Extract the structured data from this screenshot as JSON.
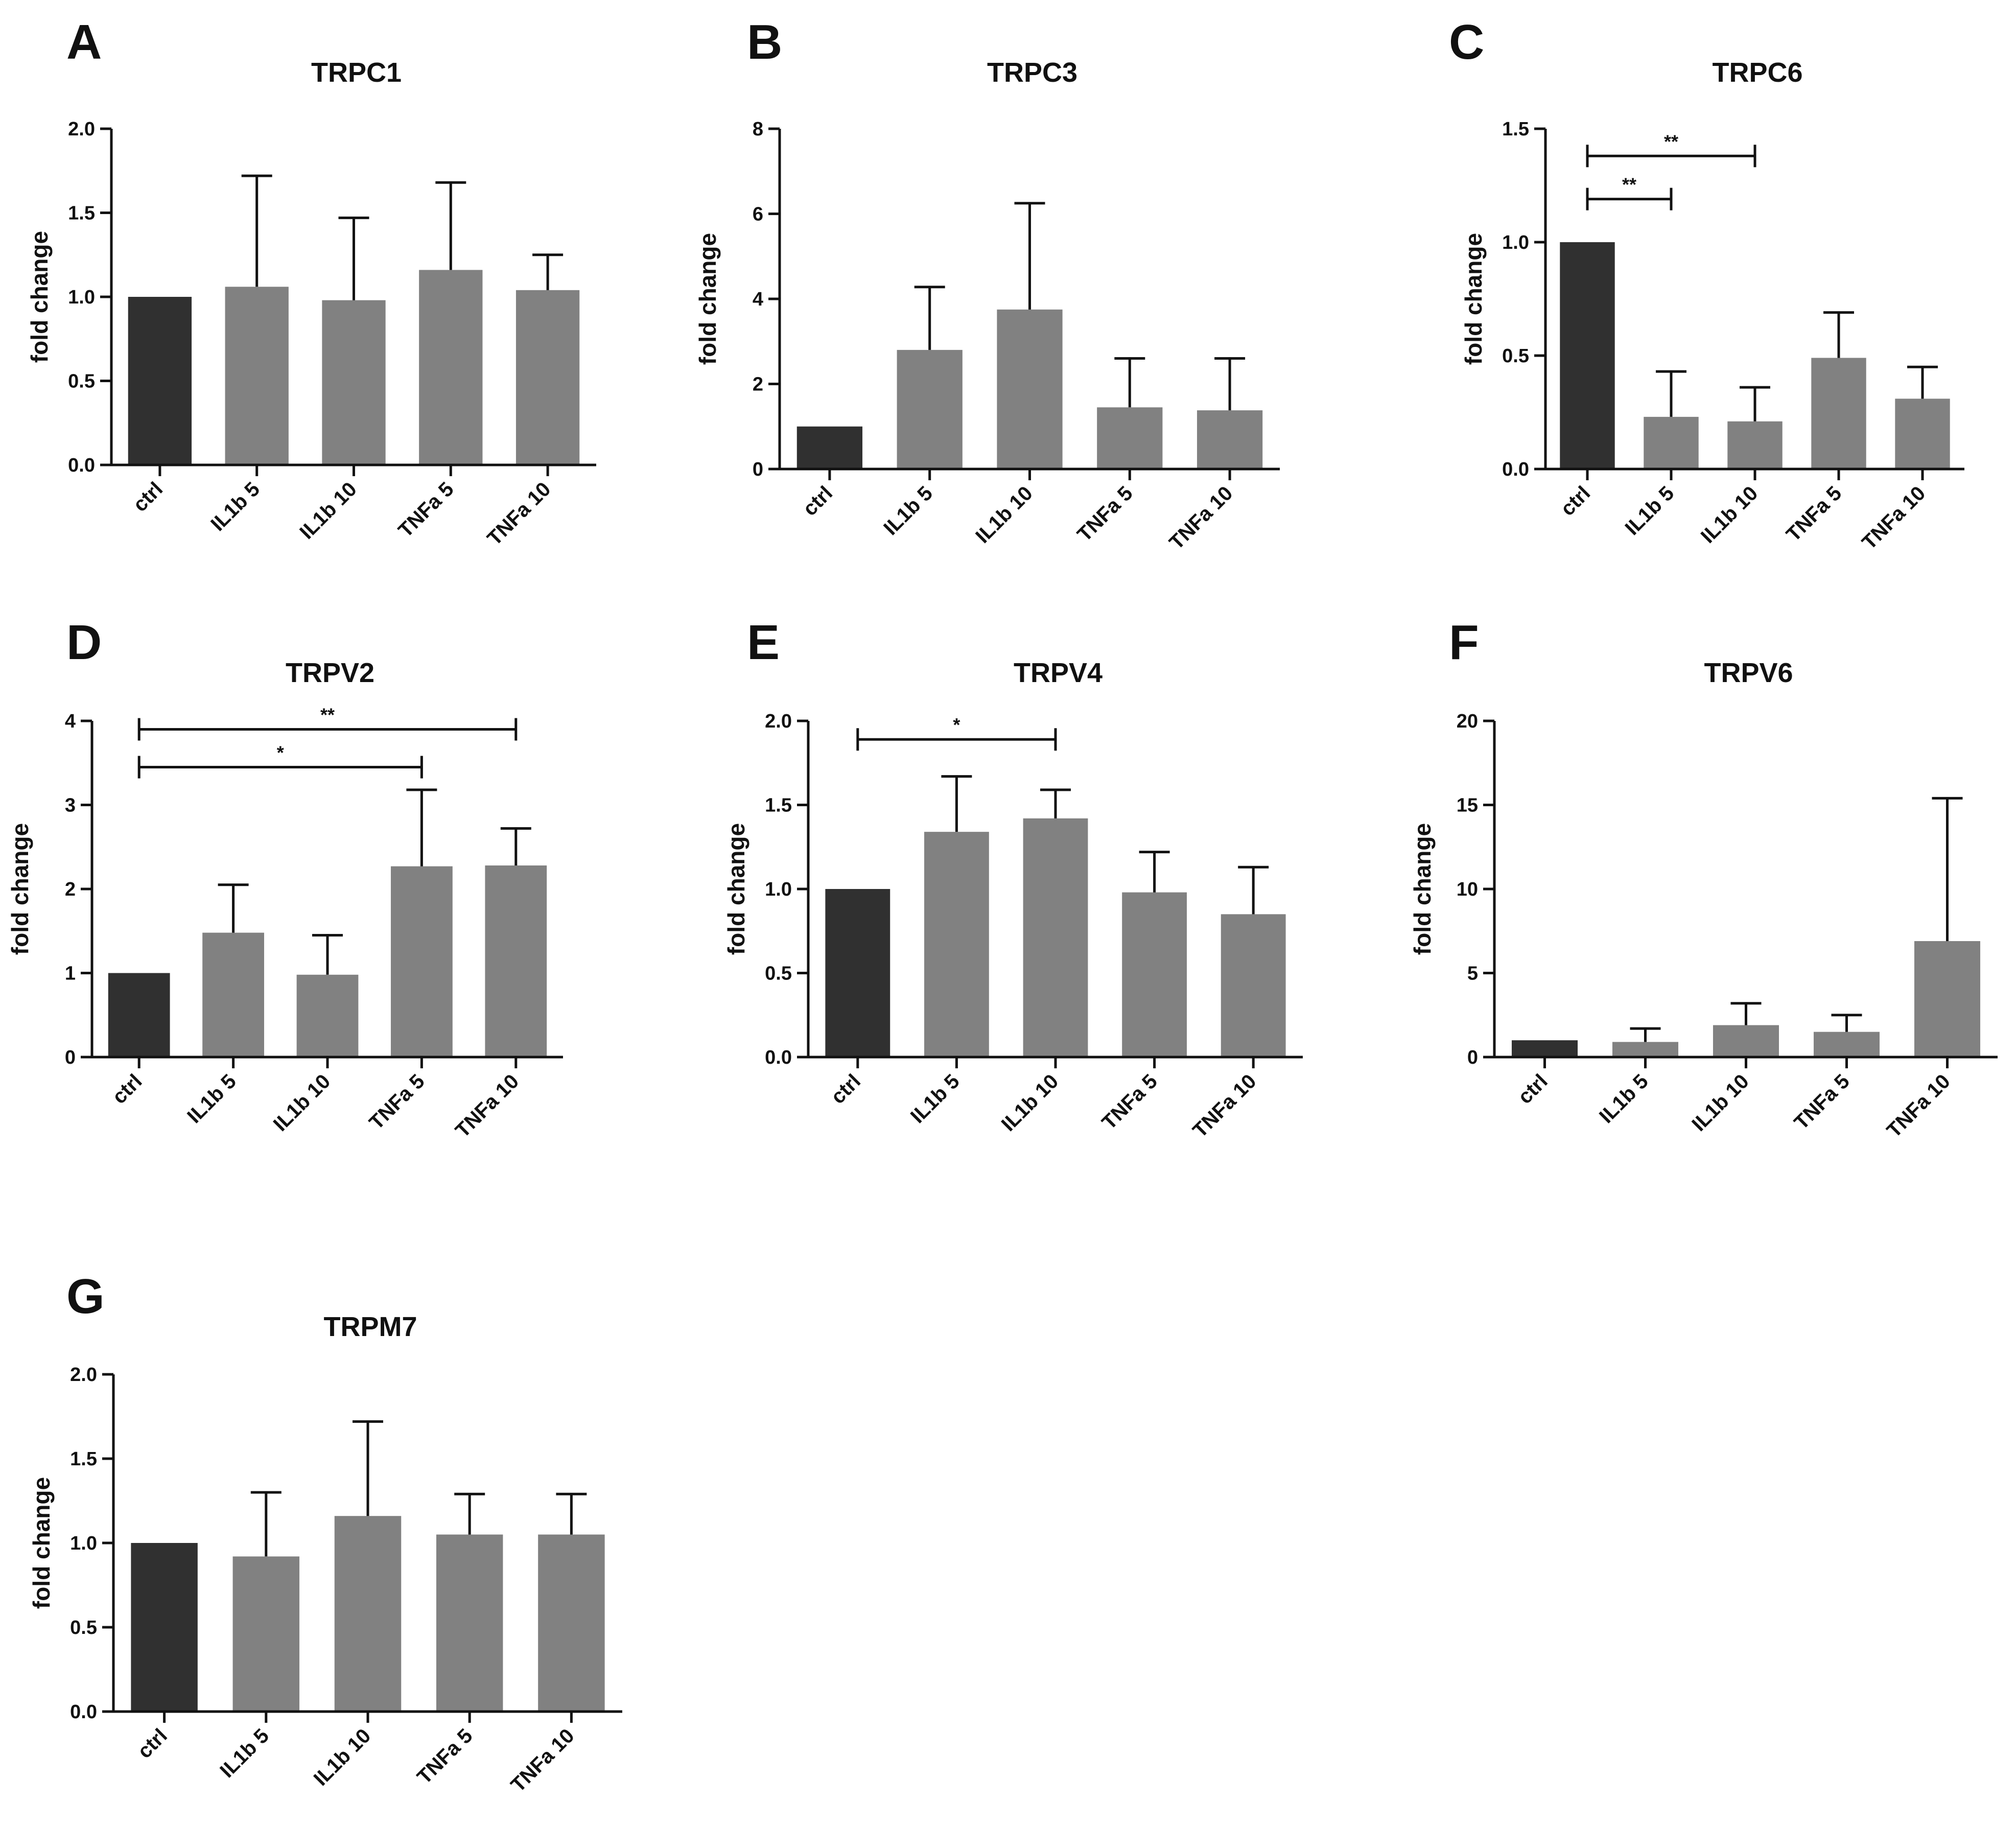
{
  "colors": {
    "ctrl_bar": "#303030",
    "treatment_bar": "#818181",
    "axis": "#111111"
  },
  "chart_data": [
    {
      "panel": "A",
      "type": "bar",
      "title": "TRPC1",
      "ylabel": "fold change",
      "xlabel": "",
      "categories": [
        "ctrl",
        "IL1b 5",
        "IL1b 10",
        "TNFa 5",
        "TNFa 10"
      ],
      "values": [
        1.0,
        1.06,
        0.98,
        1.16,
        1.04
      ],
      "errors": [
        0,
        0.66,
        0.49,
        0.52,
        0.21
      ],
      "ylim": [
        0,
        2.0
      ],
      "yticks": [
        0,
        0.5,
        1.0,
        1.5,
        2.0
      ],
      "ytick_labels": [
        "0.0",
        "0.5",
        "1.0",
        "1.5",
        "2.0"
      ],
      "significance": []
    },
    {
      "panel": "B",
      "type": "bar",
      "title": "TRPC3",
      "ylabel": "fold change",
      "xlabel": "",
      "categories": [
        "ctrl",
        "IL1b 5",
        "IL1b 10",
        "TNFa 5",
        "TNFa 10"
      ],
      "values": [
        1.0,
        2.8,
        3.75,
        1.45,
        1.38
      ],
      "errors": [
        0,
        1.48,
        2.5,
        1.15,
        1.22
      ],
      "ylim": [
        0,
        8
      ],
      "yticks": [
        0,
        2,
        4,
        6,
        8
      ],
      "ytick_labels": [
        "0",
        "2",
        "4",
        "6",
        "8"
      ],
      "significance": []
    },
    {
      "panel": "C",
      "type": "bar",
      "title": "TRPC6",
      "ylabel": "fold change",
      "xlabel": "",
      "categories": [
        "ctrl",
        "IL1b 5",
        "IL1b 10",
        "TNFa 5",
        "TNFa 10"
      ],
      "values": [
        1.0,
        0.23,
        0.21,
        0.49,
        0.31
      ],
      "errors": [
        0,
        0.2,
        0.15,
        0.2,
        0.14
      ],
      "ylim": [
        0,
        1.5
      ],
      "yticks": [
        0,
        0.5,
        1.0,
        1.5
      ],
      "ytick_labels": [
        "0.0",
        "0.5",
        "1.0",
        "1.5"
      ],
      "significance": [
        {
          "from": 0,
          "to": 1,
          "y": 1.19,
          "label": "**"
        },
        {
          "from": 0,
          "to": 2,
          "y": 1.38,
          "label": "**"
        }
      ]
    },
    {
      "panel": "D",
      "type": "bar",
      "title": "TRPV2",
      "ylabel": "fold change",
      "xlabel": "",
      "categories": [
        "ctrl",
        "IL1b 5",
        "IL1b 10",
        "TNFa 5",
        "TNFa 10"
      ],
      "values": [
        1.0,
        1.48,
        0.98,
        2.27,
        2.28
      ],
      "errors": [
        0,
        0.57,
        0.47,
        0.91,
        0.44
      ],
      "ylim": [
        0,
        4
      ],
      "yticks": [
        0,
        1,
        2,
        3,
        4
      ],
      "ytick_labels": [
        "0",
        "1",
        "2",
        "3",
        "4"
      ],
      "significance": [
        {
          "from": 0,
          "to": 3,
          "y": 3.45,
          "label": "*"
        },
        {
          "from": 0,
          "to": 4,
          "y": 3.9,
          "label": "**"
        }
      ]
    },
    {
      "panel": "E",
      "type": "bar",
      "title": "TRPV4",
      "ylabel": "fold change",
      "xlabel": "",
      "categories": [
        "ctrl",
        "IL1b 5",
        "IL1b 10",
        "TNFa 5",
        "TNFa 10"
      ],
      "values": [
        1.0,
        1.34,
        1.42,
        0.98,
        0.85
      ],
      "errors": [
        0,
        0.33,
        0.17,
        0.24,
        0.28
      ],
      "ylim": [
        0,
        2.0
      ],
      "yticks": [
        0,
        0.5,
        1.0,
        1.5,
        2.0
      ],
      "ytick_labels": [
        "0.0",
        "0.5",
        "1.0",
        "1.5",
        "2.0"
      ],
      "significance": [
        {
          "from": 0,
          "to": 2,
          "y": 1.89,
          "label": "*"
        }
      ]
    },
    {
      "panel": "F",
      "type": "bar",
      "title": "TRPV6",
      "ylabel": "fold change",
      "xlabel": "",
      "categories": [
        "ctrl",
        "IL1b 5",
        "IL1b 10",
        "TNFa 5",
        "TNFa 10"
      ],
      "values": [
        1.0,
        0.9,
        1.9,
        1.5,
        6.9
      ],
      "errors": [
        0,
        0.8,
        1.3,
        1.0,
        8.5
      ],
      "ylim": [
        0,
        20
      ],
      "yticks": [
        0,
        5,
        10,
        15,
        20
      ],
      "ytick_labels": [
        "0",
        "5",
        "10",
        "15",
        "20"
      ],
      "significance": []
    },
    {
      "panel": "G",
      "type": "bar",
      "title": "TRPM7",
      "ylabel": "fold change",
      "xlabel": "",
      "categories": [
        "ctrl",
        "IL1b 5",
        "IL1b 10",
        "TNFa 5",
        "TNFa 10"
      ],
      "values": [
        1.0,
        0.92,
        1.16,
        1.05,
        1.05
      ],
      "errors": [
        0,
        0.38,
        0.56,
        0.24,
        0.24
      ],
      "ylim": [
        0,
        2.0
      ],
      "yticks": [
        0,
        0.5,
        1.0,
        1.5,
        2.0
      ],
      "ytick_labels": [
        "0.0",
        "0.5",
        "1.0",
        "1.5",
        "2.0"
      ],
      "significance": []
    }
  ]
}
